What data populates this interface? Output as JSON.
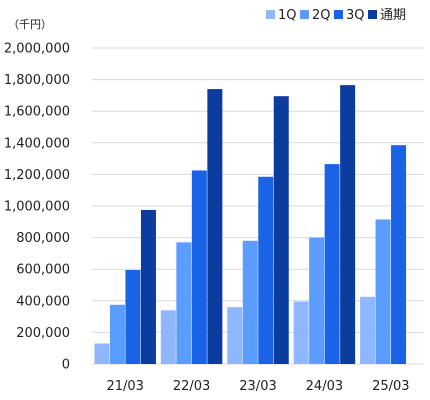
{
  "chart_data": {
    "type": "bar",
    "unit_label": "（千円）",
    "categories": [
      "21/03",
      "22/03",
      "23/03",
      "24/03",
      "25/03"
    ],
    "series": [
      {
        "name": "1Q",
        "color": "#8fb7ff",
        "values": [
          130000,
          340000,
          360000,
          395000,
          425000
        ]
      },
      {
        "name": "2Q",
        "color": "#5b9cff",
        "values": [
          375000,
          770000,
          780000,
          800000,
          915000
        ]
      },
      {
        "name": "3Q",
        "color": "#1a63e6",
        "values": [
          595000,
          1225000,
          1185000,
          1265000,
          1385000
        ]
      },
      {
        "name": "通期",
        "color": "#0a3d9d",
        "values": [
          975000,
          1740000,
          1695000,
          1765000,
          null
        ]
      }
    ],
    "ylim": [
      0,
      2000000
    ],
    "yticks": [
      0,
      200000,
      400000,
      600000,
      800000,
      1000000,
      1200000,
      1400000,
      1600000,
      1800000,
      2000000
    ],
    "ytick_labels": [
      "0",
      "200,000",
      "400,000",
      "600,000",
      "800,000",
      "1,000,000",
      "1,200,000",
      "1,400,000",
      "1,600,000",
      "1,800,000",
      "2,000,000"
    ],
    "grid": true,
    "legend_position": "top-right"
  }
}
